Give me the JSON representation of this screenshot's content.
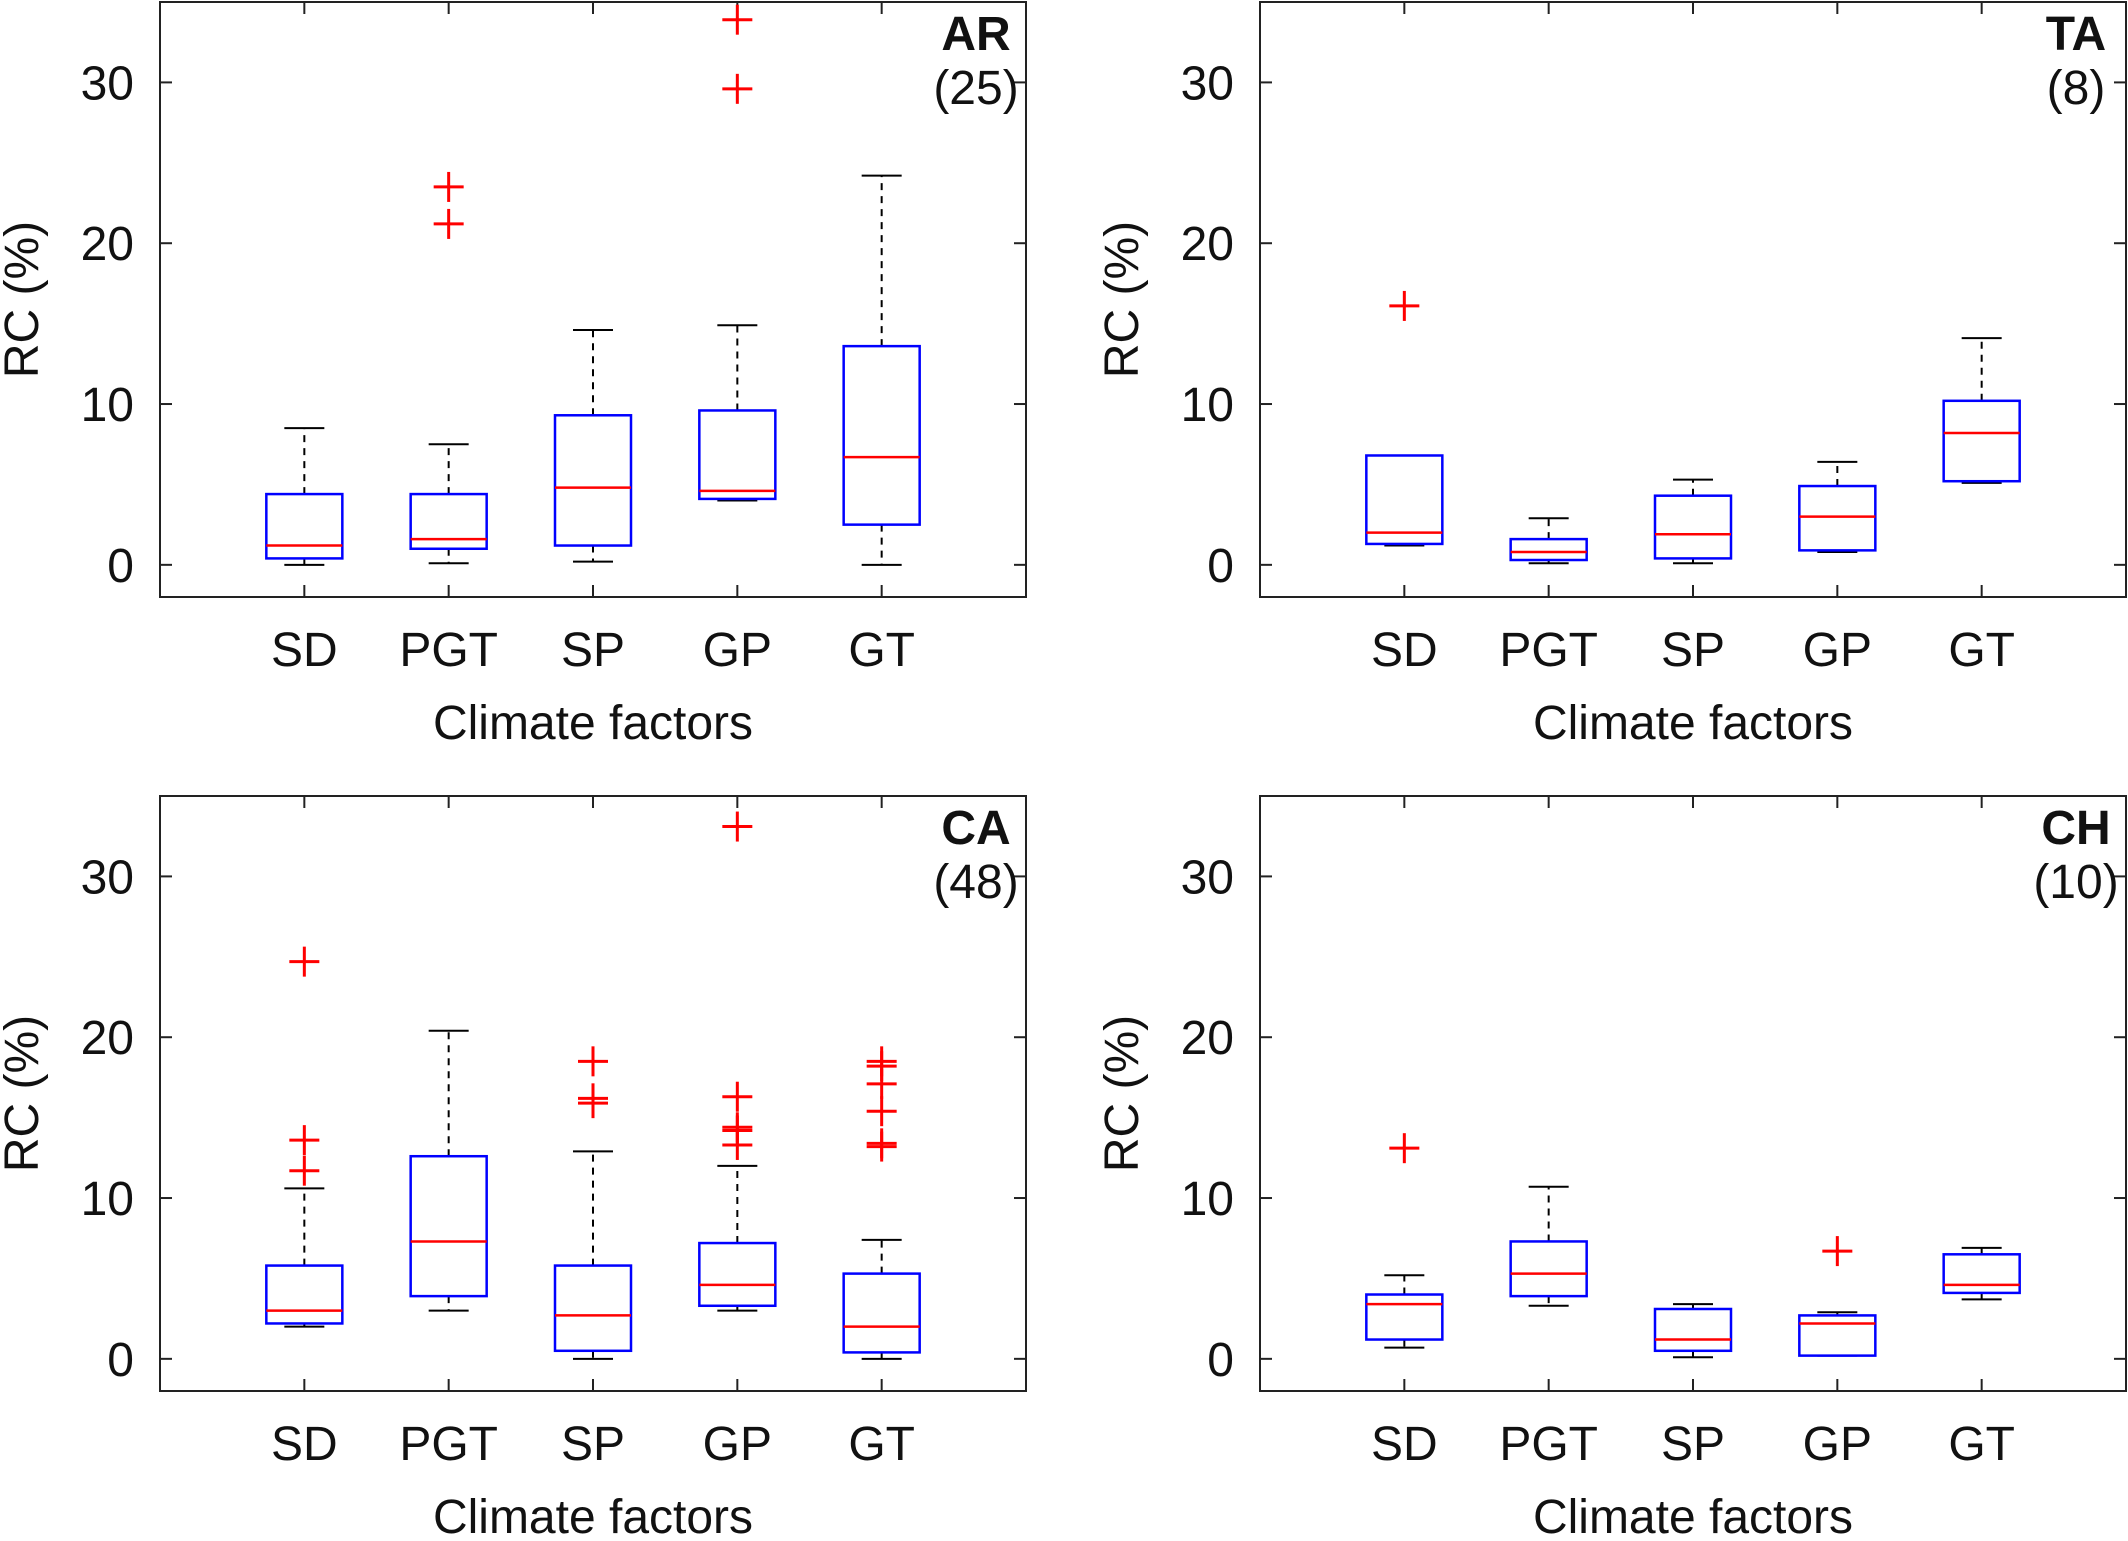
{
  "colors": {
    "box": "#0000ff",
    "median": "#ff0000",
    "outlier": "#ff0000",
    "whisker": "#000000",
    "axis": "#222222"
  },
  "chart_data": [
    {
      "type": "box",
      "panel_name": "AR",
      "panel_count": "(25)",
      "xlabel": "Climate factors",
      "ylabel": "RC (%)",
      "ylim": [
        -2,
        35
      ],
      "yticks": [
        0,
        10,
        20,
        30
      ],
      "categories": [
        "SD",
        "PGT",
        "SP",
        "GP",
        "GT"
      ],
      "boxes": [
        {
          "category": "SD",
          "whisker_low": 0.0,
          "q1": 0.4,
          "median": 1.2,
          "q3": 4.4,
          "whisker_high": 8.5,
          "outliers": []
        },
        {
          "category": "PGT",
          "whisker_low": 0.1,
          "q1": 1.0,
          "median": 1.6,
          "q3": 4.4,
          "whisker_high": 7.5,
          "outliers": [
            21.2,
            23.5
          ]
        },
        {
          "category": "SP",
          "whisker_low": 0.2,
          "q1": 1.2,
          "median": 4.8,
          "q3": 9.3,
          "whisker_high": 14.6,
          "outliers": []
        },
        {
          "category": "GP",
          "whisker_low": 4.0,
          "q1": 4.1,
          "median": 4.6,
          "q3": 9.6,
          "whisker_high": 14.9,
          "outliers": [
            29.6,
            33.9
          ]
        },
        {
          "category": "GT",
          "whisker_low": 0.0,
          "q1": 2.5,
          "median": 6.7,
          "q3": 13.6,
          "whisker_high": 24.2,
          "outliers": []
        }
      ]
    },
    {
      "type": "box",
      "panel_name": "TA",
      "panel_count": "(8)",
      "xlabel": "Climate factors",
      "ylabel": "RC (%)",
      "ylim": [
        -2,
        35
      ],
      "yticks": [
        0,
        10,
        20,
        30
      ],
      "categories": [
        "SD",
        "PGT",
        "SP",
        "GP",
        "GT"
      ],
      "boxes": [
        {
          "category": "SD",
          "whisker_low": 1.2,
          "q1": 1.3,
          "median": 2.0,
          "q3": 6.8,
          "whisker_high": 6.8,
          "outliers": [
            16.1
          ]
        },
        {
          "category": "PGT",
          "whisker_low": 0.1,
          "q1": 0.3,
          "median": 0.8,
          "q3": 1.6,
          "whisker_high": 2.9,
          "outliers": []
        },
        {
          "category": "SP",
          "whisker_low": 0.1,
          "q1": 0.4,
          "median": 1.9,
          "q3": 4.3,
          "whisker_high": 5.3,
          "outliers": []
        },
        {
          "category": "GP",
          "whisker_low": 0.8,
          "q1": 0.9,
          "median": 3.0,
          "q3": 4.9,
          "whisker_high": 6.4,
          "outliers": []
        },
        {
          "category": "GT",
          "whisker_low": 5.1,
          "q1": 5.2,
          "median": 8.2,
          "q3": 10.2,
          "whisker_high": 14.1,
          "outliers": []
        }
      ]
    },
    {
      "type": "box",
      "panel_name": "CA",
      "panel_count": "(48)",
      "xlabel": "Climate factors",
      "ylabel": "RC (%)",
      "ylim": [
        -2,
        35
      ],
      "yticks": [
        0,
        10,
        20,
        30
      ],
      "categories": [
        "SD",
        "PGT",
        "SP",
        "GP",
        "GT"
      ],
      "boxes": [
        {
          "category": "SD",
          "whisker_low": 2.0,
          "q1": 2.2,
          "median": 3.0,
          "q3": 5.8,
          "whisker_high": 10.6,
          "outliers": [
            11.7,
            13.6,
            24.7
          ]
        },
        {
          "category": "PGT",
          "whisker_low": 3.0,
          "q1": 3.9,
          "median": 7.3,
          "q3": 12.6,
          "whisker_high": 20.4,
          "outliers": []
        },
        {
          "category": "SP",
          "whisker_low": 0.0,
          "q1": 0.5,
          "median": 2.7,
          "q3": 5.8,
          "whisker_high": 12.9,
          "outliers": [
            15.9,
            16.2,
            18.5
          ]
        },
        {
          "category": "GP",
          "whisker_low": 3.0,
          "q1": 3.3,
          "median": 4.6,
          "q3": 7.2,
          "whisker_high": 12.0,
          "outliers": [
            13.3,
            14.2,
            14.4,
            16.3,
            33.1
          ]
        },
        {
          "category": "GT",
          "whisker_low": 0.0,
          "q1": 0.4,
          "median": 2.0,
          "q3": 5.3,
          "whisker_high": 7.4,
          "outliers": [
            13.2,
            13.4,
            15.4,
            17.1,
            18.2,
            18.5
          ]
        }
      ]
    },
    {
      "type": "box",
      "panel_name": "CH",
      "panel_count": "(10)",
      "xlabel": "Climate factors",
      "ylabel": "RC (%)",
      "ylim": [
        -2,
        35
      ],
      "yticks": [
        0,
        10,
        20,
        30
      ],
      "categories": [
        "SD",
        "PGT",
        "SP",
        "GP",
        "GT"
      ],
      "boxes": [
        {
          "category": "SD",
          "whisker_low": 0.7,
          "q1": 1.2,
          "median": 3.4,
          "q3": 4.0,
          "whisker_high": 5.2,
          "outliers": [
            13.1
          ]
        },
        {
          "category": "PGT",
          "whisker_low": 3.3,
          "q1": 3.9,
          "median": 5.3,
          "q3": 7.3,
          "whisker_high": 10.7,
          "outliers": []
        },
        {
          "category": "SP",
          "whisker_low": 0.1,
          "q1": 0.5,
          "median": 1.2,
          "q3": 3.1,
          "whisker_high": 3.4,
          "outliers": []
        },
        {
          "category": "GP",
          "whisker_low": 0.2,
          "q1": 0.2,
          "median": 2.2,
          "q3": 2.7,
          "whisker_high": 2.9,
          "outliers": [
            6.7
          ]
        },
        {
          "category": "GT",
          "whisker_low": 3.7,
          "q1": 4.1,
          "median": 4.6,
          "q3": 6.5,
          "whisker_high": 6.9,
          "outliers": []
        }
      ]
    }
  ]
}
